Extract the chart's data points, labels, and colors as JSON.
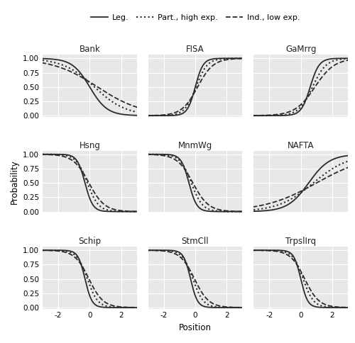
{
  "panels": [
    {
      "title": "Bank",
      "curves": [
        {
          "type": "leg",
          "a": 1.8,
          "b": 0.0,
          "direction": -1
        },
        {
          "type": "part",
          "a": 1.0,
          "b": 0.3,
          "direction": -1
        },
        {
          "type": "ind",
          "a": 0.7,
          "b": 0.5,
          "direction": -1
        }
      ]
    },
    {
      "title": "FISA",
      "curves": [
        {
          "type": "leg",
          "a": 4.0,
          "b": 0.0,
          "direction": 1
        },
        {
          "type": "part",
          "a": 2.8,
          "b": 0.05,
          "direction": 1
        },
        {
          "type": "ind",
          "a": 2.0,
          "b": 0.15,
          "direction": 1
        }
      ]
    },
    {
      "title": "GaMrrg",
      "curves": [
        {
          "type": "leg",
          "a": 3.5,
          "b": 0.6,
          "direction": 1
        },
        {
          "type": "part",
          "a": 2.3,
          "b": 0.75,
          "direction": 1
        },
        {
          "type": "ind",
          "a": 1.6,
          "b": 0.9,
          "direction": 1
        }
      ]
    },
    {
      "title": "Hsng",
      "curves": [
        {
          "type": "leg",
          "a": 4.0,
          "b": -0.3,
          "direction": -1
        },
        {
          "type": "part",
          "a": 2.8,
          "b": -0.15,
          "direction": -1
        },
        {
          "type": "ind",
          "a": 2.0,
          "b": -0.05,
          "direction": -1
        }
      ]
    },
    {
      "title": "MnmWg",
      "curves": [
        {
          "type": "leg",
          "a": 4.0,
          "b": -0.4,
          "direction": -1
        },
        {
          "type": "part",
          "a": 2.8,
          "b": -0.25,
          "direction": -1
        },
        {
          "type": "ind",
          "a": 2.0,
          "b": -0.15,
          "direction": -1
        }
      ]
    },
    {
      "title": "NAFTA",
      "curves": [
        {
          "type": "leg",
          "a": 1.5,
          "b": 0.5,
          "direction": 1
        },
        {
          "type": "part",
          "a": 0.9,
          "b": 0.8,
          "direction": 1
        },
        {
          "type": "ind",
          "a": 0.6,
          "b": 1.0,
          "direction": 1
        }
      ]
    },
    {
      "title": "Schip",
      "curves": [
        {
          "type": "leg",
          "a": 4.5,
          "b": -0.3,
          "direction": -1
        },
        {
          "type": "part",
          "a": 3.0,
          "b": -0.15,
          "direction": -1
        },
        {
          "type": "ind",
          "a": 2.2,
          "b": -0.05,
          "direction": -1
        }
      ]
    },
    {
      "title": "StmCll",
      "curves": [
        {
          "type": "leg",
          "a": 4.5,
          "b": -0.3,
          "direction": -1
        },
        {
          "type": "part",
          "a": 3.0,
          "b": -0.15,
          "direction": -1
        },
        {
          "type": "ind",
          "a": 2.2,
          "b": -0.05,
          "direction": -1
        }
      ]
    },
    {
      "title": "TrpslIrq",
      "curves": [
        {
          "type": "leg",
          "a": 4.5,
          "b": 0.0,
          "direction": -1
        },
        {
          "type": "part",
          "a": 3.0,
          "b": 0.15,
          "direction": -1
        },
        {
          "type": "ind",
          "a": 2.2,
          "b": 0.25,
          "direction": -1
        }
      ]
    }
  ],
  "line_styles": {
    "leg": {
      "linestyle": "-",
      "color": "#2b2b2b",
      "linewidth": 1.3
    },
    "part": {
      "linestyle": ":",
      "color": "#2b2b2b",
      "linewidth": 1.5
    },
    "ind": {
      "linestyle": "--",
      "color": "#2b2b2b",
      "linewidth": 1.3
    }
  },
  "legend_labels": {
    "leg": "Leg.",
    "part": "Part., high exp.",
    "ind": "Ind., low exp."
  },
  "xlabel": "Position",
  "ylabel": "Probability",
  "xlim": [
    -3.0,
    3.0
  ],
  "ylim": [
    -0.02,
    1.06
  ],
  "yticks": [
    0.0,
    0.25,
    0.5,
    0.75,
    1.0
  ],
  "xticks": [
    -2,
    0,
    2
  ],
  "panel_bg": "#e8e8e8",
  "fig_bg": "#ffffff",
  "grid_color": "#ffffff",
  "title_fontsize": 8.5,
  "label_fontsize": 8.5,
  "tick_fontsize": 7.5,
  "legend_fontsize": 8.0
}
